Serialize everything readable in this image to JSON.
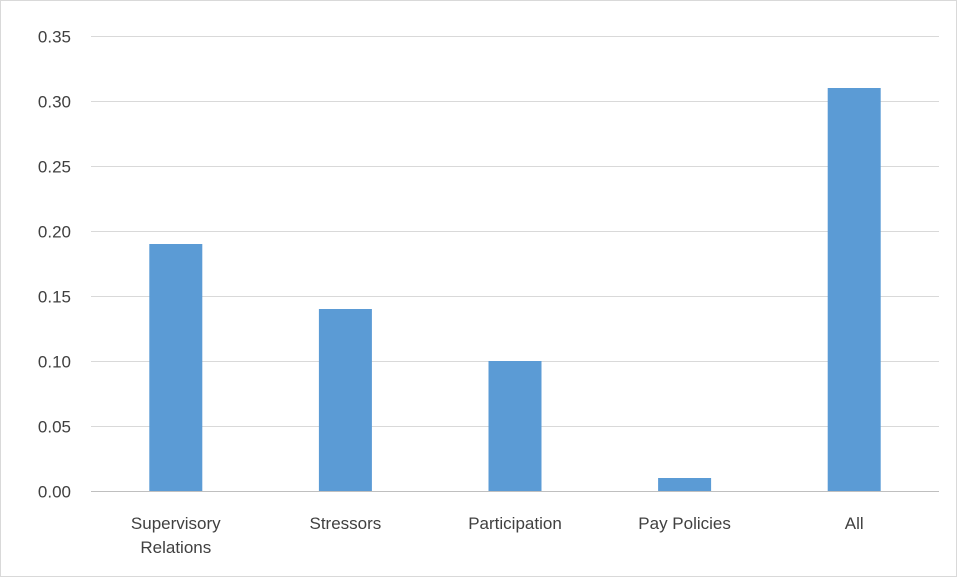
{
  "chart_data": {
    "type": "bar",
    "categories": [
      [
        "Supervisory",
        "Relations"
      ],
      [
        "Stressors"
      ],
      [
        "Participation"
      ],
      [
        "Pay Policies"
      ],
      [
        "All"
      ]
    ],
    "values": [
      0.19,
      0.14,
      0.1,
      0.01,
      0.31
    ],
    "title": "",
    "xlabel": "",
    "ylabel": "",
    "ylim": [
      0,
      0.35
    ],
    "yticks": [
      "0.00",
      "0.05",
      "0.10",
      "0.15",
      "0.20",
      "0.25",
      "0.30",
      "0.35"
    ],
    "grid": true,
    "legend": "none",
    "colors": {
      "bar": "#5b9bd5",
      "grid": "#d9d9d9",
      "axis": "#bfbfbf",
      "text": "#404040"
    }
  }
}
